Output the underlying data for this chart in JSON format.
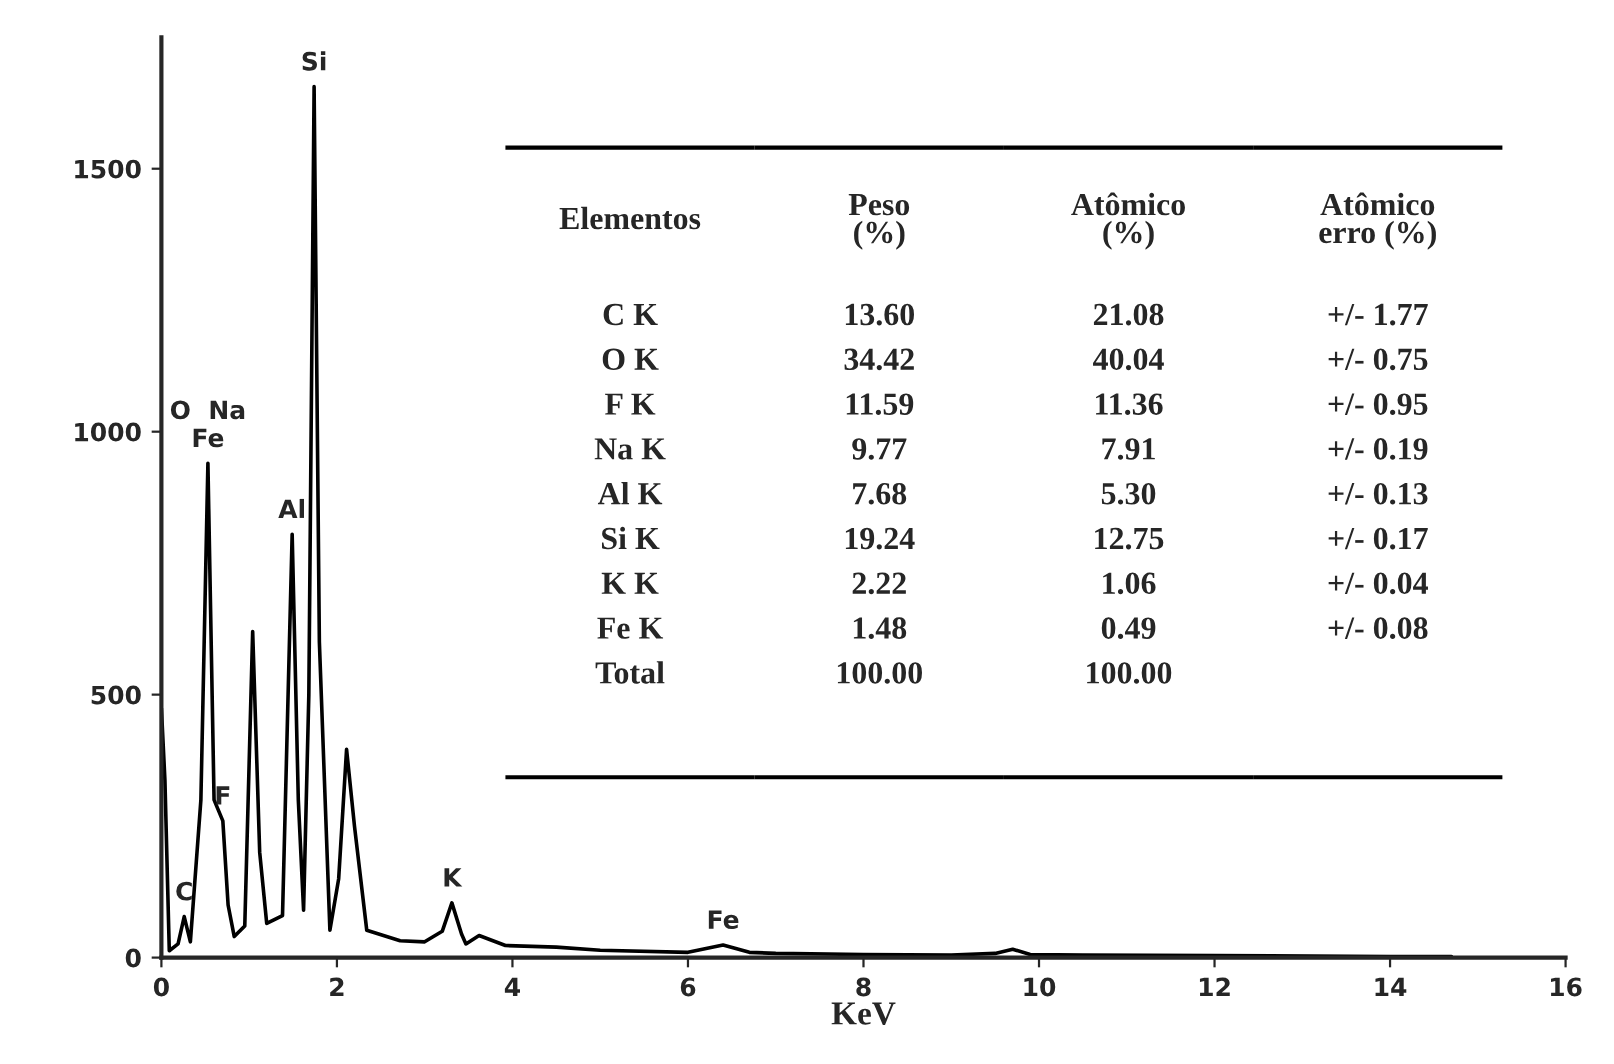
{
  "chart_data": {
    "type": "line",
    "xlabel": "KeV",
    "x": [
      0,
      0.04,
      0.09,
      0.19,
      0.26,
      0.33,
      0.45,
      0.53,
      0.6,
      0.7,
      0.76,
      0.83,
      0.95,
      1.04,
      1.12,
      1.2,
      1.38,
      1.49,
      1.56,
      1.62,
      1.68,
      1.74,
      1.8,
      1.92,
      2.02,
      2.11,
      2.2,
      2.34,
      2.72,
      3.0,
      3.2,
      3.31,
      3.42,
      3.47,
      3.62,
      3.92,
      4.5,
      5.0,
      6.0,
      6.4,
      6.7,
      7.0,
      8.0,
      9.0,
      9.5,
      9.7,
      9.9,
      10.5,
      12.0,
      14.0,
      14.7
    ],
    "series": [
      {
        "color": "#000000",
        "values": [
          474,
          338,
          13,
          26,
          78,
          30,
          300,
          940,
          300,
          260,
          100,
          40,
          60,
          620,
          200,
          65,
          80,
          805,
          300,
          90,
          500,
          1656,
          600,
          52,
          150,
          396,
          250,
          52,
          32,
          30,
          50,
          104,
          45,
          26,
          42,
          23,
          20,
          14,
          10,
          24,
          10,
          8,
          6,
          5,
          8,
          16,
          6,
          5,
          4,
          2,
          2
        ]
      }
    ],
    "xlim": [
      0,
      16
    ],
    "ylim": [
      0,
      1750
    ],
    "xticks": [
      0,
      2,
      4,
      6,
      8,
      10,
      12,
      14,
      16
    ],
    "yticks": [
      0,
      500,
      1000,
      1500
    ],
    "grid": false,
    "annotations": [
      {
        "text": "Si",
        "x": 1.74,
        "y": 1656
      },
      {
        "text": "O  Na\nFe",
        "x": 0.53,
        "y": 940
      },
      {
        "text": "Al",
        "x": 1.49,
        "y": 805
      },
      {
        "text": "F",
        "x": 0.7,
        "y": 260
      },
      {
        "text": "C",
        "x": 0.26,
        "y": 78
      },
      {
        "text": "K",
        "x": 3.31,
        "y": 104
      },
      {
        "text": "Fe",
        "x": 6.4,
        "y": 24
      },
      "Elementos\tPeso\n(%)\tAtômico\n(%)\tAtômico\nerro (%)",
      "C K\t13.60\t21.08\t+/- 1.77",
      "O K\t34.42\t40.04\t+/- 0.75",
      "F K\t11.59\t11.36\t+/- 0.95",
      "Na K\t9.77\t7.91\t+/- 0.19",
      "Al K\t7.68\t5.30\t+/- 0.13",
      "Si K\t19.24\t12.75\t+/- 0.17",
      "K K\t2.22\t1.06\t+/- 0.04",
      "Fe K\t1.48\t0.49\t+/- 0.08",
      "Total\t100.00\t100.00"
    ]
  }
}
